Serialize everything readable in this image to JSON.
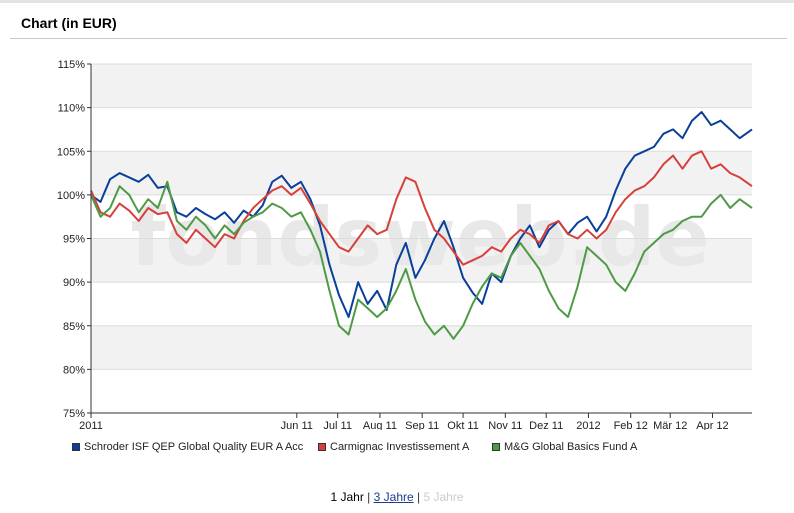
{
  "panel": {
    "title": "Chart (in EUR)"
  },
  "watermark": "fondsweb.de",
  "colors": {
    "schroder": "#0a3f9a",
    "carmignac": "#d7403a",
    "mg": "#4e9a45",
    "band": "#f2f2f2",
    "grid": "#dcdcdc"
  },
  "range_nav": {
    "options": [
      {
        "label": "1 Jahr",
        "state": "active"
      },
      {
        "label": "3 Jahre",
        "state": "link"
      },
      {
        "label": "5 Jahre",
        "state": "disabled"
      }
    ],
    "separator": "|"
  },
  "chart_data": {
    "type": "line",
    "title": "",
    "xlabel": "",
    "ylabel": "",
    "ylim": [
      75,
      115
    ],
    "y_ticks": [
      "75%",
      "80%",
      "85%",
      "90%",
      "95%",
      "100%",
      "105%",
      "110%",
      "115%"
    ],
    "y_tick_values": [
      75,
      80,
      85,
      90,
      95,
      100,
      105,
      110,
      115
    ],
    "x_range": [
      "2011-01-01",
      "2012-04-30"
    ],
    "x_ticks": [
      {
        "label": "2011",
        "date": "2011-01-01"
      },
      {
        "label": "Jun 11",
        "date": "2011-06-01"
      },
      {
        "label": "Jul 11",
        "date": "2011-07-01"
      },
      {
        "label": "Aug 11",
        "date": "2011-08-01"
      },
      {
        "label": "Sep 11",
        "date": "2011-09-01"
      },
      {
        "label": "Okt 11",
        "date": "2011-10-01"
      },
      {
        "label": "Nov 11",
        "date": "2011-11-01"
      },
      {
        "label": "Dez 11",
        "date": "2011-12-01"
      },
      {
        "label": "2012",
        "date": "2012-01-01"
      },
      {
        "label": "Feb 12",
        "date": "2012-02-01"
      },
      {
        "label": "Mär 12",
        "date": "2012-03-01"
      },
      {
        "label": "Apr 12",
        "date": "2012-04-01"
      }
    ],
    "grid": true,
    "legend_position": "bottom",
    "series": [
      {
        "name": "Schroder ISF QEP Global Quality EUR A Acc",
        "color": "#0a3f9a",
        "points": [
          [
            "2011-01-01",
            100.0
          ],
          [
            "2011-01-08",
            99.2
          ],
          [
            "2011-01-15",
            101.8
          ],
          [
            "2011-01-22",
            102.5
          ],
          [
            "2011-01-29",
            102.0
          ],
          [
            "2011-02-05",
            101.5
          ],
          [
            "2011-02-12",
            102.3
          ],
          [
            "2011-02-19",
            100.8
          ],
          [
            "2011-02-26",
            101.0
          ],
          [
            "2011-03-05",
            98.0
          ],
          [
            "2011-03-12",
            97.5
          ],
          [
            "2011-03-19",
            98.5
          ],
          [
            "2011-03-26",
            97.8
          ],
          [
            "2011-04-02",
            97.2
          ],
          [
            "2011-04-09",
            98.0
          ],
          [
            "2011-04-16",
            96.8
          ],
          [
            "2011-04-23",
            98.2
          ],
          [
            "2011-04-30",
            97.5
          ],
          [
            "2011-05-07",
            98.8
          ],
          [
            "2011-05-14",
            101.5
          ],
          [
            "2011-05-21",
            102.2
          ],
          [
            "2011-05-28",
            100.8
          ],
          [
            "2011-06-04",
            101.5
          ],
          [
            "2011-06-11",
            99.5
          ],
          [
            "2011-06-18",
            96.5
          ],
          [
            "2011-06-25",
            92.0
          ],
          [
            "2011-07-02",
            88.5
          ],
          [
            "2011-07-09",
            86.0
          ],
          [
            "2011-07-16",
            90.0
          ],
          [
            "2011-07-23",
            87.5
          ],
          [
            "2011-07-30",
            89.0
          ],
          [
            "2011-08-06",
            86.8
          ],
          [
            "2011-08-13",
            92.0
          ],
          [
            "2011-08-20",
            94.5
          ],
          [
            "2011-08-27",
            90.5
          ],
          [
            "2011-09-03",
            92.5
          ],
          [
            "2011-09-10",
            95.0
          ],
          [
            "2011-09-17",
            97.0
          ],
          [
            "2011-09-24",
            94.0
          ],
          [
            "2011-10-01",
            90.5
          ],
          [
            "2011-10-08",
            88.8
          ],
          [
            "2011-10-15",
            87.5
          ],
          [
            "2011-10-22",
            91.0
          ],
          [
            "2011-10-29",
            90.0
          ],
          [
            "2011-11-05",
            93.0
          ],
          [
            "2011-11-12",
            95.0
          ],
          [
            "2011-11-19",
            96.5
          ],
          [
            "2011-11-26",
            94.0
          ],
          [
            "2011-12-03",
            96.0
          ],
          [
            "2011-12-10",
            97.0
          ],
          [
            "2011-12-17",
            95.5
          ],
          [
            "2011-12-24",
            96.8
          ],
          [
            "2011-12-31",
            97.5
          ],
          [
            "2012-01-07",
            95.8
          ],
          [
            "2012-01-14",
            97.5
          ],
          [
            "2012-01-21",
            100.5
          ],
          [
            "2012-01-28",
            103.0
          ],
          [
            "2012-02-04",
            104.5
          ],
          [
            "2012-02-11",
            105.0
          ],
          [
            "2012-02-18",
            105.5
          ],
          [
            "2012-02-25",
            107.0
          ],
          [
            "2012-03-03",
            107.5
          ],
          [
            "2012-03-10",
            106.5
          ],
          [
            "2012-03-17",
            108.5
          ],
          [
            "2012-03-24",
            109.5
          ],
          [
            "2012-03-31",
            108.0
          ],
          [
            "2012-04-07",
            108.5
          ],
          [
            "2012-04-14",
            107.5
          ],
          [
            "2012-04-21",
            106.5
          ],
          [
            "2012-04-30",
            107.5
          ]
        ]
      },
      {
        "name": "Carmignac Investissement A",
        "color": "#d7403a",
        "points": [
          [
            "2011-01-01",
            100.5
          ],
          [
            "2011-01-08",
            98.0
          ],
          [
            "2011-01-15",
            97.5
          ],
          [
            "2011-01-22",
            99.0
          ],
          [
            "2011-01-29",
            98.2
          ],
          [
            "2011-02-05",
            97.0
          ],
          [
            "2011-02-12",
            98.5
          ],
          [
            "2011-02-19",
            97.8
          ],
          [
            "2011-02-26",
            98.0
          ],
          [
            "2011-03-05",
            95.5
          ],
          [
            "2011-03-12",
            94.5
          ],
          [
            "2011-03-19",
            96.0
          ],
          [
            "2011-03-26",
            95.0
          ],
          [
            "2011-04-02",
            94.0
          ],
          [
            "2011-04-09",
            95.5
          ],
          [
            "2011-04-16",
            95.0
          ],
          [
            "2011-04-23",
            97.0
          ],
          [
            "2011-04-30",
            98.5
          ],
          [
            "2011-05-07",
            99.5
          ],
          [
            "2011-05-14",
            100.5
          ],
          [
            "2011-05-21",
            101.0
          ],
          [
            "2011-05-28",
            100.0
          ],
          [
            "2011-06-04",
            100.8
          ],
          [
            "2011-06-11",
            99.0
          ],
          [
            "2011-06-18",
            97.0
          ],
          [
            "2011-06-25",
            95.5
          ],
          [
            "2011-07-02",
            94.0
          ],
          [
            "2011-07-09",
            93.5
          ],
          [
            "2011-07-16",
            95.0
          ],
          [
            "2011-07-23",
            96.5
          ],
          [
            "2011-07-30",
            95.5
          ],
          [
            "2011-08-06",
            96.0
          ],
          [
            "2011-08-13",
            99.5
          ],
          [
            "2011-08-20",
            102.0
          ],
          [
            "2011-08-27",
            101.5
          ],
          [
            "2011-09-03",
            98.5
          ],
          [
            "2011-09-10",
            96.0
          ],
          [
            "2011-09-17",
            95.0
          ],
          [
            "2011-09-24",
            93.5
          ],
          [
            "2011-10-01",
            92.0
          ],
          [
            "2011-10-08",
            92.5
          ],
          [
            "2011-10-15",
            93.0
          ],
          [
            "2011-10-22",
            94.0
          ],
          [
            "2011-10-29",
            93.5
          ],
          [
            "2011-11-05",
            95.0
          ],
          [
            "2011-11-12",
            96.0
          ],
          [
            "2011-11-19",
            95.5
          ],
          [
            "2011-11-26",
            94.5
          ],
          [
            "2011-12-03",
            96.5
          ],
          [
            "2011-12-10",
            97.0
          ],
          [
            "2011-12-17",
            95.5
          ],
          [
            "2011-12-24",
            95.0
          ],
          [
            "2011-12-31",
            96.0
          ],
          [
            "2012-01-07",
            95.0
          ],
          [
            "2012-01-14",
            96.0
          ],
          [
            "2012-01-21",
            98.0
          ],
          [
            "2012-01-28",
            99.5
          ],
          [
            "2012-02-04",
            100.5
          ],
          [
            "2012-02-11",
            101.0
          ],
          [
            "2012-02-18",
            102.0
          ],
          [
            "2012-02-25",
            103.5
          ],
          [
            "2012-03-03",
            104.5
          ],
          [
            "2012-03-10",
            103.0
          ],
          [
            "2012-03-17",
            104.5
          ],
          [
            "2012-03-24",
            105.0
          ],
          [
            "2012-03-31",
            103.0
          ],
          [
            "2012-04-07",
            103.5
          ],
          [
            "2012-04-14",
            102.5
          ],
          [
            "2012-04-21",
            102.0
          ],
          [
            "2012-04-30",
            101.0
          ]
        ]
      },
      {
        "name": "M&G Global Basics Fund A",
        "color": "#4e9a45",
        "points": [
          [
            "2011-01-01",
            100.0
          ],
          [
            "2011-01-08",
            97.5
          ],
          [
            "2011-01-15",
            98.5
          ],
          [
            "2011-01-22",
            101.0
          ],
          [
            "2011-01-29",
            100.0
          ],
          [
            "2011-02-05",
            98.0
          ],
          [
            "2011-02-12",
            99.5
          ],
          [
            "2011-02-19",
            98.5
          ],
          [
            "2011-02-26",
            101.5
          ],
          [
            "2011-03-05",
            97.0
          ],
          [
            "2011-03-12",
            96.0
          ],
          [
            "2011-03-19",
            97.5
          ],
          [
            "2011-03-26",
            96.5
          ],
          [
            "2011-04-02",
            95.0
          ],
          [
            "2011-04-09",
            96.5
          ],
          [
            "2011-04-16",
            95.5
          ],
          [
            "2011-04-23",
            96.8
          ],
          [
            "2011-04-30",
            97.5
          ],
          [
            "2011-05-07",
            98.0
          ],
          [
            "2011-05-14",
            99.0
          ],
          [
            "2011-05-21",
            98.5
          ],
          [
            "2011-05-28",
            97.5
          ],
          [
            "2011-06-04",
            98.0
          ],
          [
            "2011-06-11",
            96.0
          ],
          [
            "2011-06-18",
            93.5
          ],
          [
            "2011-06-25",
            89.0
          ],
          [
            "2011-07-02",
            85.0
          ],
          [
            "2011-07-09",
            84.0
          ],
          [
            "2011-07-16",
            88.0
          ],
          [
            "2011-07-23",
            87.0
          ],
          [
            "2011-07-30",
            86.0
          ],
          [
            "2011-08-06",
            87.0
          ],
          [
            "2011-08-13",
            89.0
          ],
          [
            "2011-08-20",
            91.5
          ],
          [
            "2011-08-27",
            88.0
          ],
          [
            "2011-09-03",
            85.5
          ],
          [
            "2011-09-10",
            84.0
          ],
          [
            "2011-09-17",
            85.0
          ],
          [
            "2011-09-24",
            83.5
          ],
          [
            "2011-10-01",
            85.0
          ],
          [
            "2011-10-08",
            87.5
          ],
          [
            "2011-10-15",
            89.5
          ],
          [
            "2011-10-22",
            91.0
          ],
          [
            "2011-10-29",
            90.5
          ],
          [
            "2011-11-05",
            93.0
          ],
          [
            "2011-11-12",
            94.5
          ],
          [
            "2011-11-19",
            93.0
          ],
          [
            "2011-11-26",
            91.5
          ],
          [
            "2011-12-03",
            89.0
          ],
          [
            "2011-12-10",
            87.0
          ],
          [
            "2011-12-17",
            86.0
          ],
          [
            "2011-12-24",
            89.5
          ],
          [
            "2011-12-31",
            94.0
          ],
          [
            "2012-01-07",
            93.0
          ],
          [
            "2012-01-14",
            92.0
          ],
          [
            "2012-01-21",
            90.0
          ],
          [
            "2012-01-28",
            89.0
          ],
          [
            "2012-02-04",
            91.0
          ],
          [
            "2012-02-11",
            93.5
          ],
          [
            "2012-02-18",
            94.5
          ],
          [
            "2012-02-25",
            95.5
          ],
          [
            "2012-03-03",
            96.0
          ],
          [
            "2012-03-10",
            97.0
          ],
          [
            "2012-03-17",
            97.5
          ],
          [
            "2012-03-24",
            97.5
          ],
          [
            "2012-03-31",
            99.0
          ],
          [
            "2012-04-07",
            100.0
          ],
          [
            "2012-04-14",
            98.5
          ],
          [
            "2012-04-21",
            99.5
          ],
          [
            "2012-04-30",
            98.5
          ]
        ]
      }
    ]
  }
}
